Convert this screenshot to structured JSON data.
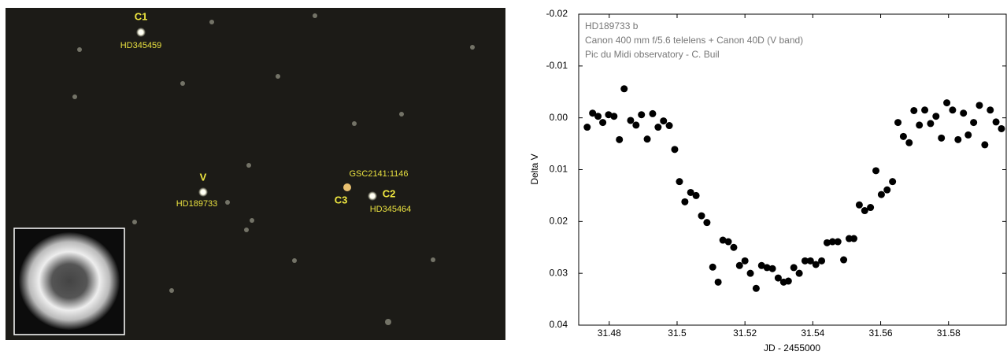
{
  "image": {
    "labels": [
      "C1",
      "HD345459",
      "V",
      "HD189733",
      "GSC2141:1146",
      "C3",
      "C2",
      "HD345464"
    ]
  },
  "chart_data": {
    "type": "scatter",
    "annotation": [
      "HD189733 b",
      "Canon 400 mm f/5.6 telelens + Canon 40D (V band)",
      "Pic du Midi observatory - C. Buil"
    ],
    "x_label": "JD - 2455000",
    "y_label": "Delta V",
    "xlim": [
      31.471,
      31.597
    ],
    "ylim": [
      0.04,
      -0.02
    ],
    "xticks": [
      31.48,
      31.5,
      31.52,
      31.54,
      31.56,
      31.58
    ],
    "yticks": [
      -0.02,
      -0.01,
      {
        "value": 0,
        "label": "0.00"
      },
      0.01,
      0.02,
      0.03,
      0.04
    ],
    "color": "#000000",
    "x": [
      31.4735,
      31.4751,
      31.4767,
      31.4781,
      31.4798,
      31.4814,
      31.483,
      31.4844,
      31.4863,
      31.4879,
      31.4895,
      31.4912,
      31.4928,
      31.4944,
      31.496,
      31.4977,
      31.4993,
      31.5007,
      31.5023,
      31.504,
      31.5056,
      31.5072,
      31.5088,
      31.5105,
      31.5121,
      31.5135,
      31.5151,
      31.5167,
      31.5184,
      31.52,
      31.5216,
      31.5233,
      31.5249,
      31.5265,
      31.5281,
      31.5298,
      31.5314,
      31.5328,
      31.5344,
      31.536,
      31.5377,
      31.5393,
      31.5409,
      31.5426,
      31.5442,
      31.5458,
      31.5474,
      31.5491,
      31.5507,
      31.5521,
      31.5537,
      31.5553,
      31.557,
      31.5586,
      31.5602,
      31.5619,
      31.5635,
      31.5651,
      31.5667,
      31.5684,
      31.5698,
      31.5714,
      31.573,
      31.5747,
      31.5763,
      31.5779,
      31.5795,
      31.5812,
      31.5828,
      31.5844,
      31.5858,
      31.5874,
      31.5891,
      31.5907,
      31.5923,
      31.594,
      31.5956
    ],
    "values": [
      0.0018,
      -0.0009,
      -0.0003,
      0.0009,
      -0.0006,
      -0.0003,
      0.0042,
      -0.0056,
      0.0005,
      0.0014,
      -0.0006,
      0.0041,
      -0.0008,
      0.0018,
      0.0006,
      0.0015,
      0.0061,
      0.0123,
      0.0162,
      0.0144,
      0.015,
      0.0189,
      0.0202,
      0.0288,
      0.0317,
      0.0236,
      0.0239,
      0.025,
      0.0285,
      0.0276,
      0.03,
      0.0329,
      0.0285,
      0.0289,
      0.0291,
      0.0309,
      0.0317,
      0.0315,
      0.0289,
      0.03,
      0.0276,
      0.0276,
      0.0283,
      0.0276,
      0.0241,
      0.0239,
      0.0239,
      0.0274,
      0.0233,
      0.0233,
      0.0168,
      0.0179,
      0.0173,
      0.0102,
      0.0148,
      0.0139,
      0.0123,
      0.0009,
      0.0036,
      0.0048,
      -0.0014,
      0.0014,
      -0.0015,
      0.0011,
      -0.0003,
      0.0039,
      -0.0029,
      -0.0015,
      0.0042,
      -0.0009,
      0.0033,
      0.0009,
      -0.0024,
      0.0052,
      -0.0015,
      0.0008,
      0.0021
    ]
  }
}
